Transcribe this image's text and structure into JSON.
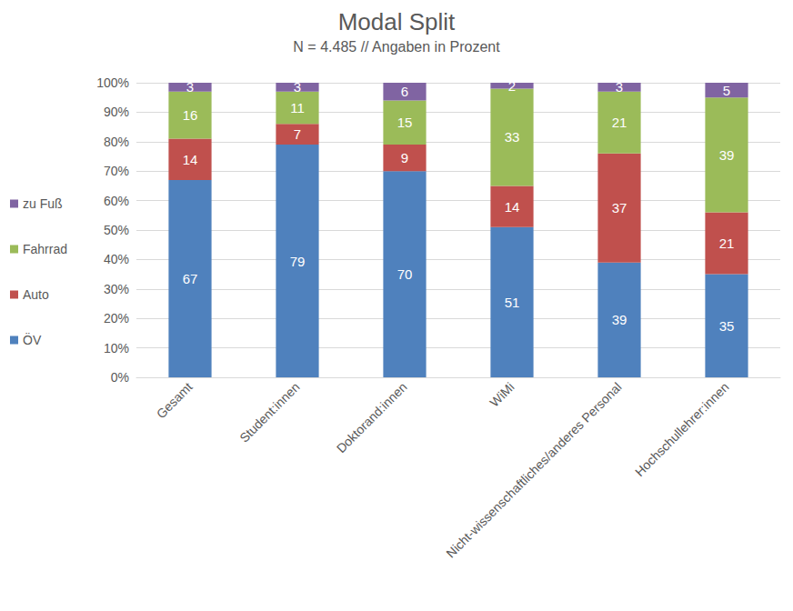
{
  "chart_data": {
    "type": "bar",
    "title": "Modal Split",
    "subtitle": "N = 4.485 // Angaben in Prozent",
    "categories": [
      "Gesamt",
      "Student:innen",
      "Doktorand:innen",
      "WiMi",
      "Nicht-wissenschaftliches/anderes Personal",
      "Hochschullehrer:innen"
    ],
    "series": [
      {
        "name": "ÖV",
        "color": "#4f81bd",
        "values": [
          67,
          79,
          70,
          51,
          39,
          35
        ]
      },
      {
        "name": "Auto",
        "color": "#c0504d",
        "values": [
          14,
          7,
          9,
          14,
          37,
          21
        ]
      },
      {
        "name": "Fahrrad",
        "color": "#9bbb59",
        "values": [
          16,
          11,
          15,
          33,
          21,
          39
        ]
      },
      {
        "name": "zu Fuß",
        "color": "#8064a2",
        "values": [
          3,
          3,
          6,
          2,
          3,
          5
        ]
      }
    ],
    "ylim": [
      0,
      100
    ],
    "yticks": [
      {
        "value": 0,
        "label": "0%"
      },
      {
        "value": 10,
        "label": "10%"
      },
      {
        "value": 20,
        "label": "20%"
      },
      {
        "value": 30,
        "label": "30%"
      },
      {
        "value": 40,
        "label": "40%"
      },
      {
        "value": 50,
        "label": "50%"
      },
      {
        "value": 60,
        "label": "60%"
      },
      {
        "value": 70,
        "label": "70%"
      },
      {
        "value": 80,
        "label": "80%"
      },
      {
        "value": 90,
        "label": "90%"
      },
      {
        "value": 100,
        "label": "100%"
      }
    ],
    "stacked": true,
    "data_labels": true,
    "legend": "left",
    "grid": true
  }
}
